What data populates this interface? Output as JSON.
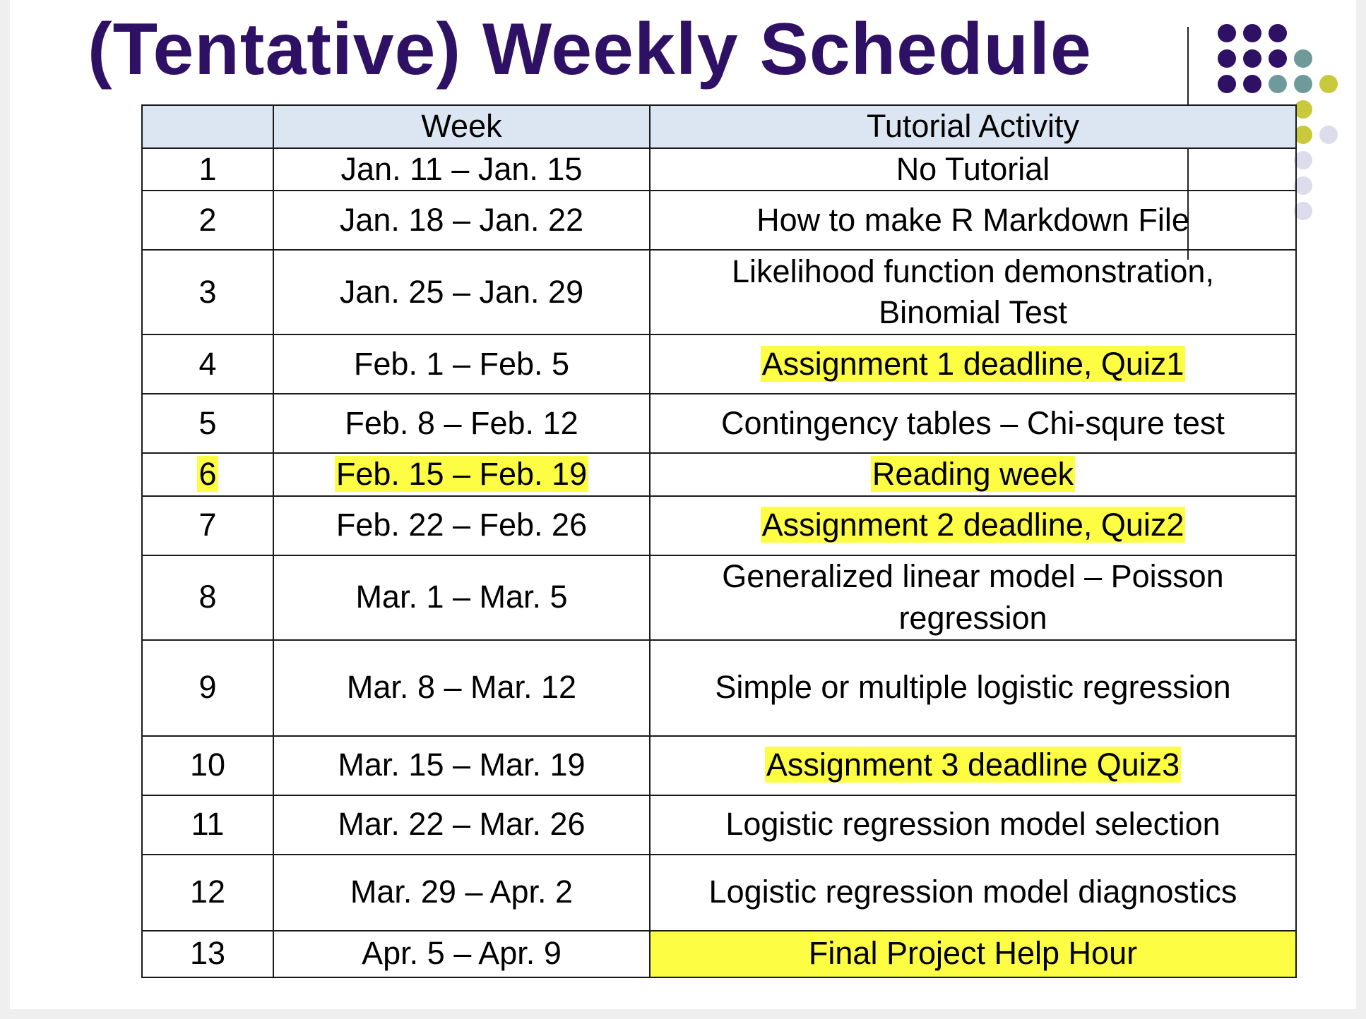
{
  "title": "(Tentative) Weekly Schedule",
  "accent_colors": {
    "title": "#2e1065",
    "highlight": "#fdfd44",
    "header_fill": "#dce6f2"
  },
  "table": {
    "headers": [
      "",
      "Week",
      "Tutorial  Activity"
    ],
    "rows": [
      {
        "num": "1",
        "dates": "Jan. 11 – Jan. 15",
        "activity": "No Tutorial"
      },
      {
        "num": "2",
        "dates": "Jan. 18 – Jan. 22",
        "activity": "How to make R Markdown File"
      },
      {
        "num": "3",
        "dates": "Jan. 25 – Jan. 29",
        "activity_line1": "Likelihood function demonstration,",
        "activity_line2": "Binomial Test"
      },
      {
        "num": "4",
        "dates": "Feb. 1 – Feb. 5",
        "activity": "Assignment 1 deadline, Quiz1"
      },
      {
        "num": "5",
        "dates": "Feb. 8 –  Feb. 12",
        "activity": "Contingency tables – Chi-squre test"
      },
      {
        "num": "6",
        "dates": "Feb. 15 – Feb. 19",
        "activity": "Reading week"
      },
      {
        "num": "7",
        "dates": "Feb. 22 – Feb. 26",
        "activity": "Assignment 2 deadline, Quiz2"
      },
      {
        "num": "8",
        "dates": "Mar. 1 – Mar. 5",
        "activity_line1": "Generalized linear model – Poisson",
        "activity_line2": "regression"
      },
      {
        "num": "9",
        "dates": "Mar. 8 – Mar. 12",
        "activity": "Simple or multiple logistic regression"
      },
      {
        "num": "10",
        "dates": "Mar. 15 – Mar. 19",
        "activity": "Assignment 3 deadline Quiz3"
      },
      {
        "num": "11",
        "dates": "Mar. 22 – Mar. 26",
        "activity": "Logistic regression model selection"
      },
      {
        "num": "12",
        "dates": "Mar. 29 – Apr. 2",
        "activity": "Logistic regression model diagnostics"
      },
      {
        "num": "13",
        "dates": "Apr.  5 – Apr.  9",
        "activity": "Final Project Help Hour"
      }
    ]
  }
}
